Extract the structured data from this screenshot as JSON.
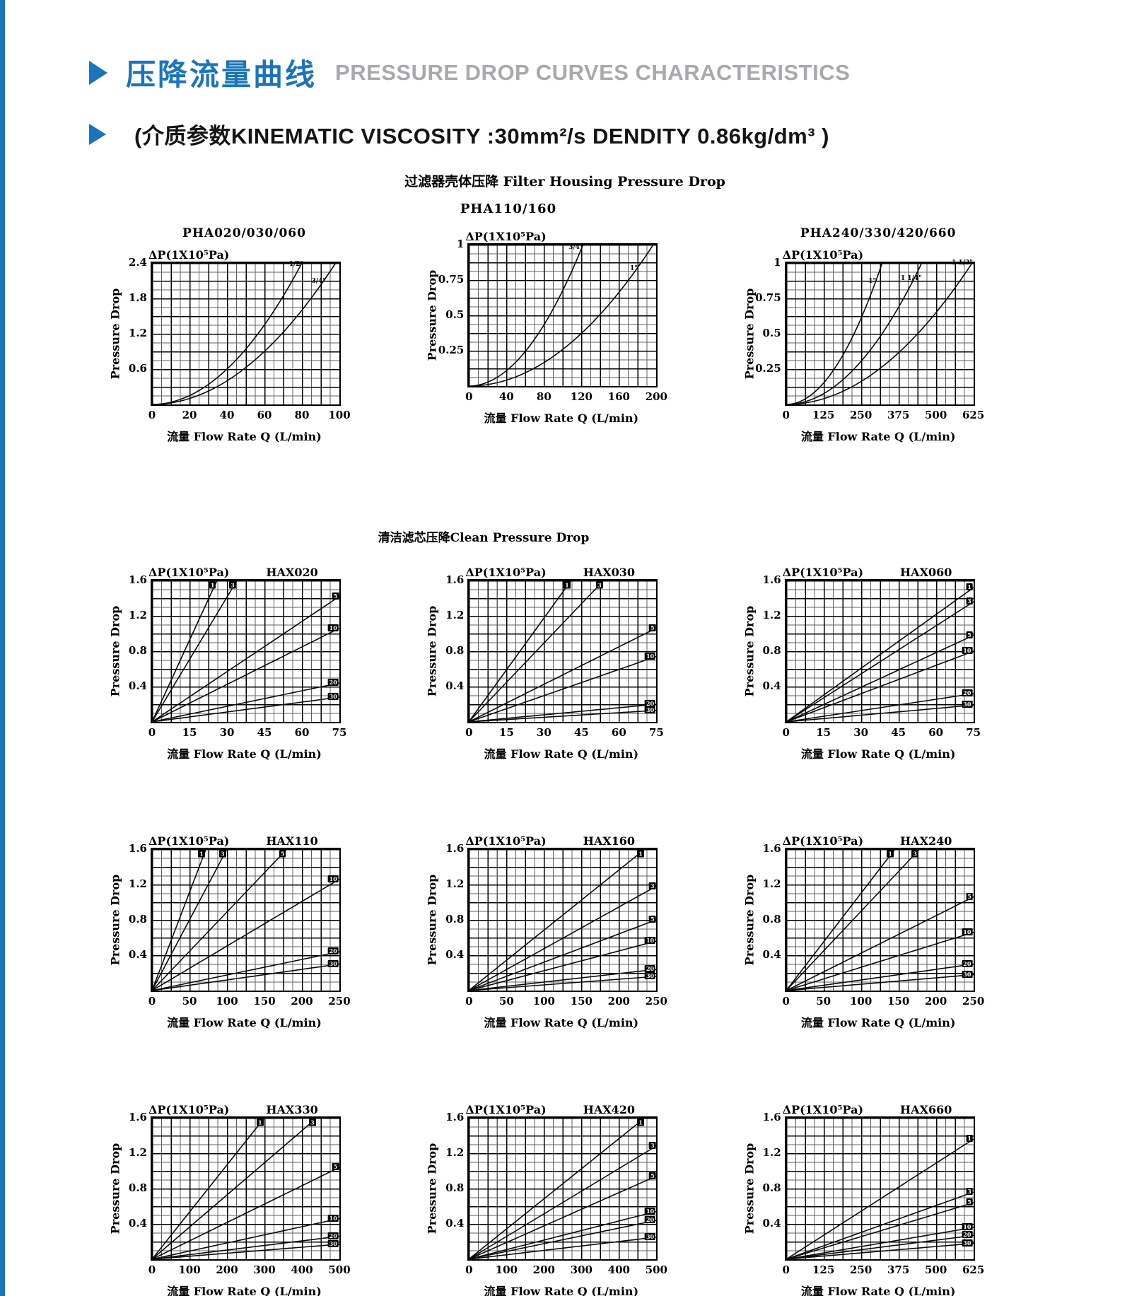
{
  "page": {
    "accent_blue": "#1b74bc",
    "header_cn": "压降流量曲线",
    "header_en": "PRESSURE DROP CURVES  CHARACTERISTICS",
    "subheader": "(介质参数KINEMATIC VISCOSITY :30mm²/s DENDITY 0.86kg/dm³ )",
    "section1_title": "过滤器壳体压降 Filter Housing Pressure Drop",
    "section1_sub": "PHA110/160",
    "section2_title": "清洁滤芯压降Clean Pressure Drop",
    "dp_label": "ΔP(1X10⁵Pa)",
    "xlabel": "流量 Flow Rate  Q (L/min)",
    "ylabel": "Pressure Drop"
  },
  "chart_data": [
    {
      "id": "PHA020-030-060",
      "type": "line",
      "title": "PHA020/030/060",
      "title_above": true,
      "xlabel": "流量 Flow Rate  Q (L/min)",
      "ylabel": "Pressure Drop",
      "dp_label": "ΔP(1X10⁵Pa)",
      "xlim": [
        0,
        100
      ],
      "xticks": [
        0,
        20,
        40,
        60,
        80,
        100
      ],
      "ylim": [
        0,
        2.4
      ],
      "yticks": [
        2.4,
        1.8,
        1.2,
        0.6
      ],
      "exp": 2,
      "boxed": false,
      "series": [
        {
          "label": "1/2\"",
          "end": [
            80,
            2.4
          ],
          "lxy": [
            77,
            2.3
          ]
        },
        {
          "label": "3/4\"",
          "end": [
            98,
            2.4
          ],
          "lxy": [
            89,
            2.02
          ]
        }
      ]
    },
    {
      "id": "PHA110-160",
      "type": "line",
      "title": "",
      "title_above": false,
      "xlabel": "流量 Flow Rate  Q (L/min)",
      "ylabel": "Pressure Drop",
      "dp_label": "ΔP(1X10⁵Pa)",
      "xlim": [
        0,
        200
      ],
      "xticks": [
        0,
        40,
        80,
        120,
        160,
        200
      ],
      "ylim": [
        0,
        1
      ],
      "yticks": [
        1,
        0.75,
        0.5,
        0.25
      ],
      "exp": 2,
      "boxed": false,
      "series": [
        {
          "label": "3/4\"",
          "end": [
            122,
            1
          ],
          "lxy": [
            114,
            0.95
          ]
        },
        {
          "label": "1\"",
          "end": [
            197,
            1
          ],
          "lxy": [
            176,
            0.8
          ]
        }
      ]
    },
    {
      "id": "PHA240-330-420-660",
      "type": "line",
      "title": "PHA240/330/420/660",
      "title_above": true,
      "xlabel": "流量 Flow Rate  Q (L/min)",
      "ylabel": "Pressure Drop",
      "dp_label": "ΔP(1X10⁵Pa)",
      "xlim": [
        0,
        625
      ],
      "xticks": [
        0,
        125,
        250,
        375,
        500,
        625
      ],
      "ylim": [
        0,
        1
      ],
      "yticks": [
        1,
        0.75,
        0.5,
        0.25
      ],
      "exp": 2,
      "boxed": false,
      "series": [
        {
          "label": "1\"",
          "end": [
            320,
            1
          ],
          "lxy": [
            288,
            0.84
          ]
        },
        {
          "label": "1 1/4\"",
          "end": [
            452,
            1
          ],
          "lxy": [
            418,
            0.86
          ]
        },
        {
          "label": "1 1/2\"",
          "end": [
            620,
            1
          ],
          "lxy": [
            588,
            0.97
          ]
        }
      ]
    },
    {
      "id": "HAX020",
      "type": "line",
      "title": "HAX020",
      "title_above": false,
      "xlabel": "流量 Flow Rate  Q (L/min)",
      "ylabel": "Pressure Drop",
      "dp_label": "ΔP(1X10⁵Pa)",
      "xlim": [
        0,
        75
      ],
      "xticks": [
        0,
        15,
        30,
        45,
        60,
        75
      ],
      "ylim": [
        0,
        1.6
      ],
      "yticks": [
        1.6,
        1.2,
        0.8,
        0.4
      ],
      "exp": 1,
      "boxed": true,
      "series": [
        {
          "label": "1",
          "end": [
            26,
            1.6
          ]
        },
        {
          "label": "3",
          "end": [
            34,
            1.6
          ]
        },
        {
          "label": "5",
          "end": [
            75,
            1.42
          ]
        },
        {
          "label": "10",
          "end": [
            75,
            1.06
          ]
        },
        {
          "label": "20",
          "end": [
            75,
            0.44
          ]
        },
        {
          "label": "30",
          "end": [
            75,
            0.28
          ]
        }
      ]
    },
    {
      "id": "HAX030",
      "type": "line",
      "title": "HAX030",
      "title_above": false,
      "xlabel": "流量 Flow Rate  Q (L/min)",
      "ylabel": "Pressure Drop",
      "dp_label": "ΔP(1X10⁵Pa)",
      "xlim": [
        0,
        75
      ],
      "xticks": [
        0,
        15,
        30,
        45,
        60,
        75
      ],
      "ylim": [
        0,
        1.6
      ],
      "yticks": [
        1.6,
        1.2,
        0.8,
        0.4
      ],
      "exp": 1,
      "boxed": true,
      "series": [
        {
          "label": "1",
          "end": [
            41,
            1.6
          ]
        },
        {
          "label": "3",
          "end": [
            54,
            1.6
          ]
        },
        {
          "label": "5",
          "end": [
            75,
            1.06
          ]
        },
        {
          "label": "10",
          "end": [
            75,
            0.74
          ]
        },
        {
          "label": "20",
          "end": [
            75,
            0.2
          ]
        },
        {
          "label": "30",
          "end": [
            75,
            0.13
          ]
        }
      ]
    },
    {
      "id": "HAX060",
      "type": "line",
      "title": "HAX060",
      "title_above": false,
      "xlabel": "流量 Flow Rate  Q (L/min)",
      "ylabel": "Pressure Drop",
      "dp_label": "ΔP(1X10⁵Pa)",
      "xlim": [
        0,
        75
      ],
      "xticks": [
        0,
        15,
        30,
        45,
        60,
        75
      ],
      "ylim": [
        0,
        1.6
      ],
      "yticks": [
        1.6,
        1.2,
        0.8,
        0.4
      ],
      "exp": 1,
      "boxed": true,
      "series": [
        {
          "label": "1",
          "end": [
            75,
            1.52
          ]
        },
        {
          "label": "3",
          "end": [
            75,
            1.36
          ]
        },
        {
          "label": "5",
          "end": [
            75,
            0.98
          ]
        },
        {
          "label": "10",
          "end": [
            75,
            0.8
          ]
        },
        {
          "label": "20",
          "end": [
            75,
            0.32
          ]
        },
        {
          "label": "30",
          "end": [
            75,
            0.19
          ]
        }
      ]
    },
    {
      "id": "HAX110",
      "type": "line",
      "title": "HAX110",
      "title_above": false,
      "xlabel": "流量 Flow Rate  Q (L/min)",
      "ylabel": "Pressure Drop",
      "dp_label": "ΔP(1X10⁵Pa)",
      "xlim": [
        0,
        250
      ],
      "xticks": [
        0,
        50,
        100,
        150,
        200,
        250
      ],
      "ylim": [
        0,
        1.6
      ],
      "yticks": [
        1.6,
        1.2,
        0.8,
        0.4
      ],
      "exp": 1,
      "boxed": true,
      "series": [
        {
          "label": "1",
          "end": [
            72,
            1.6
          ]
        },
        {
          "label": "3",
          "end": [
            100,
            1.6
          ]
        },
        {
          "label": "5",
          "end": [
            180,
            1.6
          ]
        },
        {
          "label": "10",
          "end": [
            250,
            1.26
          ]
        },
        {
          "label": "20",
          "end": [
            250,
            0.44
          ]
        },
        {
          "label": "30",
          "end": [
            250,
            0.3
          ]
        }
      ]
    },
    {
      "id": "HAX160",
      "type": "line",
      "title": "HAX160",
      "title_above": false,
      "xlabel": "流量 Flow Rate  Q (L/min)",
      "ylabel": "Pressure Drop",
      "dp_label": "ΔP(1X10⁵Pa)",
      "xlim": [
        0,
        250
      ],
      "xticks": [
        0,
        50,
        100,
        150,
        200,
        250
      ],
      "ylim": [
        0,
        1.6
      ],
      "yticks": [
        1.6,
        1.2,
        0.8,
        0.4
      ],
      "exp": 1,
      "boxed": true,
      "series": [
        {
          "label": "1",
          "end": [
            235,
            1.6
          ]
        },
        {
          "label": "3",
          "end": [
            250,
            1.18
          ]
        },
        {
          "label": "5",
          "end": [
            250,
            0.8
          ]
        },
        {
          "label": "10",
          "end": [
            250,
            0.56
          ]
        },
        {
          "label": "20",
          "end": [
            250,
            0.24
          ]
        },
        {
          "label": "30",
          "end": [
            250,
            0.16
          ]
        }
      ]
    },
    {
      "id": "HAX240",
      "type": "line",
      "title": "HAX240",
      "title_above": false,
      "xlabel": "流量 Flow Rate  Q (L/min)",
      "ylabel": "Pressure Drop",
      "dp_label": "ΔP(1X10⁵Pa)",
      "xlim": [
        0,
        250
      ],
      "xticks": [
        0,
        50,
        100,
        150,
        200,
        250
      ],
      "ylim": [
        0,
        1.6
      ],
      "yticks": [
        1.6,
        1.2,
        0.8,
        0.4
      ],
      "exp": 1,
      "boxed": true,
      "series": [
        {
          "label": "1",
          "end": [
            145,
            1.6
          ]
        },
        {
          "label": "3",
          "end": [
            178,
            1.6
          ]
        },
        {
          "label": "5",
          "end": [
            250,
            1.06
          ]
        },
        {
          "label": "10",
          "end": [
            250,
            0.66
          ]
        },
        {
          "label": "20",
          "end": [
            250,
            0.3
          ]
        },
        {
          "label": "30",
          "end": [
            250,
            0.18
          ]
        }
      ]
    },
    {
      "id": "HAX330",
      "type": "line",
      "title": "HAX330",
      "title_above": false,
      "xlabel": "流量 Flow Rate  Q (L/min)",
      "ylabel": "Pressure Drop",
      "dp_label": "ΔP(1X10⁵Pa)",
      "xlim": [
        0,
        500
      ],
      "xticks": [
        0,
        100,
        200,
        300,
        400,
        500
      ],
      "ylim": [
        0,
        1.6
      ],
      "yticks": [
        1.6,
        1.2,
        0.8,
        0.4
      ],
      "exp": 1,
      "boxed": true,
      "series": [
        {
          "label": "1",
          "end": [
            300,
            1.6
          ]
        },
        {
          "label": "3",
          "end": [
            440,
            1.6
          ]
        },
        {
          "label": "5",
          "end": [
            500,
            1.04
          ]
        },
        {
          "label": "10",
          "end": [
            500,
            0.46
          ]
        },
        {
          "label": "20",
          "end": [
            500,
            0.26
          ]
        },
        {
          "label": "30",
          "end": [
            500,
            0.17
          ]
        }
      ]
    },
    {
      "id": "HAX420",
      "type": "line",
      "title": "HAX420",
      "title_above": false,
      "xlabel": "流量 Flow Rate  Q (L/min)",
      "ylabel": "Pressure Drop",
      "dp_label": "ΔP(1X10⁵Pa)",
      "xlim": [
        0,
        500
      ],
      "xticks": [
        0,
        100,
        200,
        300,
        400,
        500
      ],
      "ylim": [
        0,
        1.6
      ],
      "yticks": [
        1.6,
        1.2,
        0.8,
        0.4
      ],
      "exp": 1,
      "boxed": true,
      "series": [
        {
          "label": "1",
          "end": [
            470,
            1.6
          ]
        },
        {
          "label": "3",
          "end": [
            500,
            1.28
          ]
        },
        {
          "label": "5",
          "end": [
            500,
            0.94
          ]
        },
        {
          "label": "10",
          "end": [
            500,
            0.54
          ]
        },
        {
          "label": "20",
          "end": [
            500,
            0.44
          ]
        },
        {
          "label": "30",
          "end": [
            500,
            0.25
          ]
        }
      ]
    },
    {
      "id": "HAX660",
      "type": "line",
      "title": "HAX660",
      "title_above": false,
      "xlabel": "流量 Flow Rate  Q (L/min)",
      "ylabel": "Pressure Drop",
      "dp_label": "ΔP(1X10⁵Pa)",
      "xlim": [
        0,
        625
      ],
      "xticks": [
        0,
        125,
        250,
        375,
        500,
        625
      ],
      "ylim": [
        0,
        1.6
      ],
      "yticks": [
        1.6,
        1.2,
        0.8,
        0.4
      ],
      "exp": 1,
      "boxed": true,
      "series": [
        {
          "label": "1",
          "end": [
            625,
            1.36
          ]
        },
        {
          "label": "3",
          "end": [
            625,
            0.76
          ]
        },
        {
          "label": "5",
          "end": [
            625,
            0.64
          ]
        },
        {
          "label": "10",
          "end": [
            625,
            0.36
          ]
        },
        {
          "label": "20",
          "end": [
            625,
            0.27
          ]
        },
        {
          "label": "30",
          "end": [
            625,
            0.18
          ]
        }
      ]
    }
  ]
}
